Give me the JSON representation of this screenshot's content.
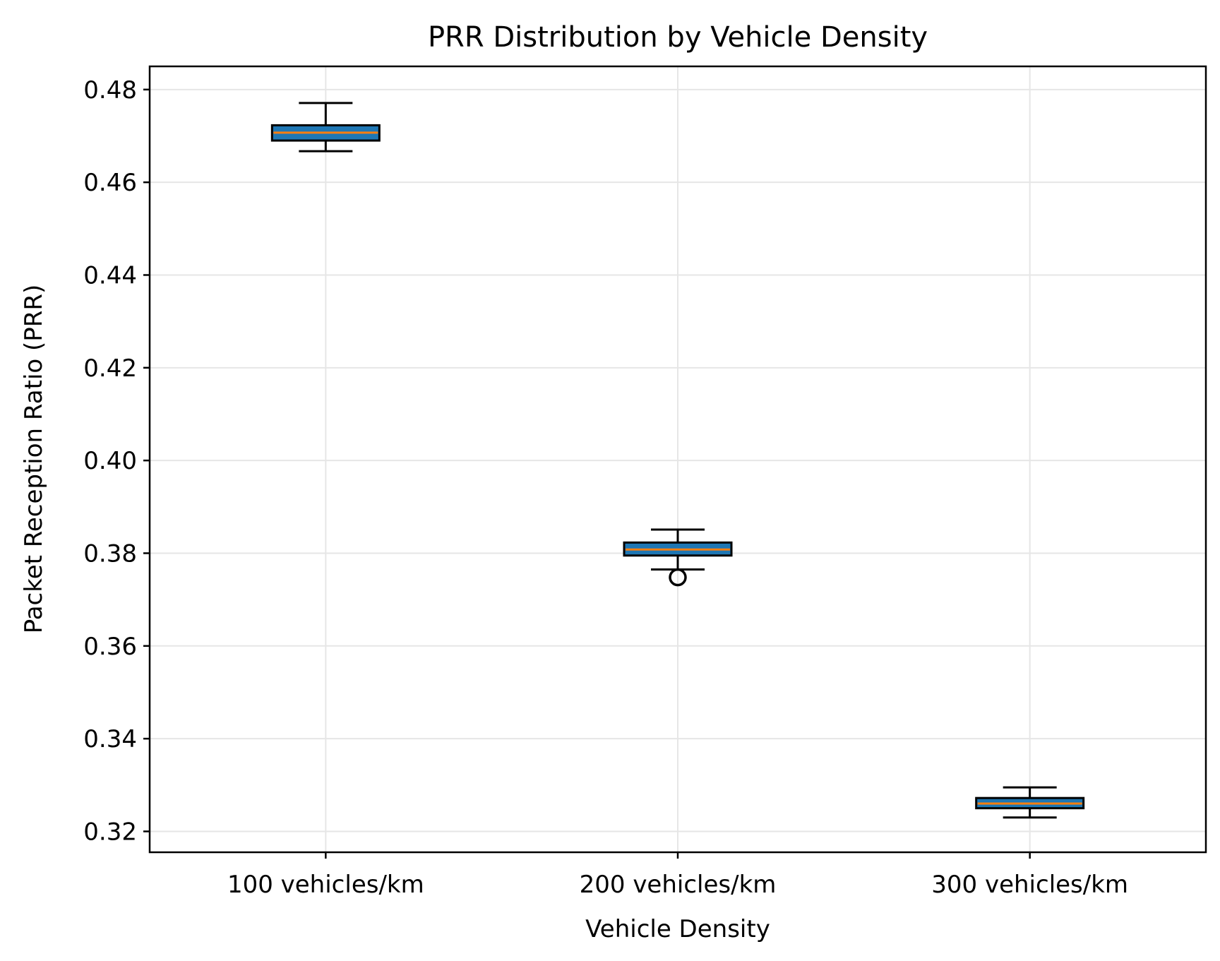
{
  "chart_data": {
    "type": "box",
    "title": "PRR Distribution by Vehicle Density",
    "xlabel": "Vehicle Density",
    "ylabel": "Packet Reception Ratio (PRR)",
    "categories": [
      "100 vehicles/km",
      "200 vehicles/km",
      "300 vehicles/km"
    ],
    "ylim": [
      0.3155,
      0.485
    ],
    "yticks": [
      0.32,
      0.34,
      0.36,
      0.38,
      0.4,
      0.42,
      0.44,
      0.46,
      0.48
    ],
    "ytick_labels": [
      "0.32",
      "0.34",
      "0.36",
      "0.38",
      "0.40",
      "0.42",
      "0.44",
      "0.46",
      "0.48"
    ],
    "grid": true,
    "boxes": [
      {
        "category": "100 vehicles/km",
        "whisker_low": 0.4667,
        "q1": 0.469,
        "median": 0.4707,
        "q3": 0.4723,
        "whisker_high": 0.4771,
        "outliers": []
      },
      {
        "category": "200 vehicles/km",
        "whisker_low": 0.3765,
        "q1": 0.3795,
        "median": 0.3808,
        "q3": 0.3823,
        "whisker_high": 0.3851,
        "outliers": [
          0.3748
        ]
      },
      {
        "category": "300 vehicles/km",
        "whisker_low": 0.323,
        "q1": 0.325,
        "median": 0.326,
        "q3": 0.3272,
        "whisker_high": 0.3295,
        "outliers": []
      }
    ],
    "colors": {
      "box_fill": "#1f77b4",
      "median": "#ff7f0e",
      "edge": "#000000",
      "grid": "#e6e6e6"
    }
  }
}
